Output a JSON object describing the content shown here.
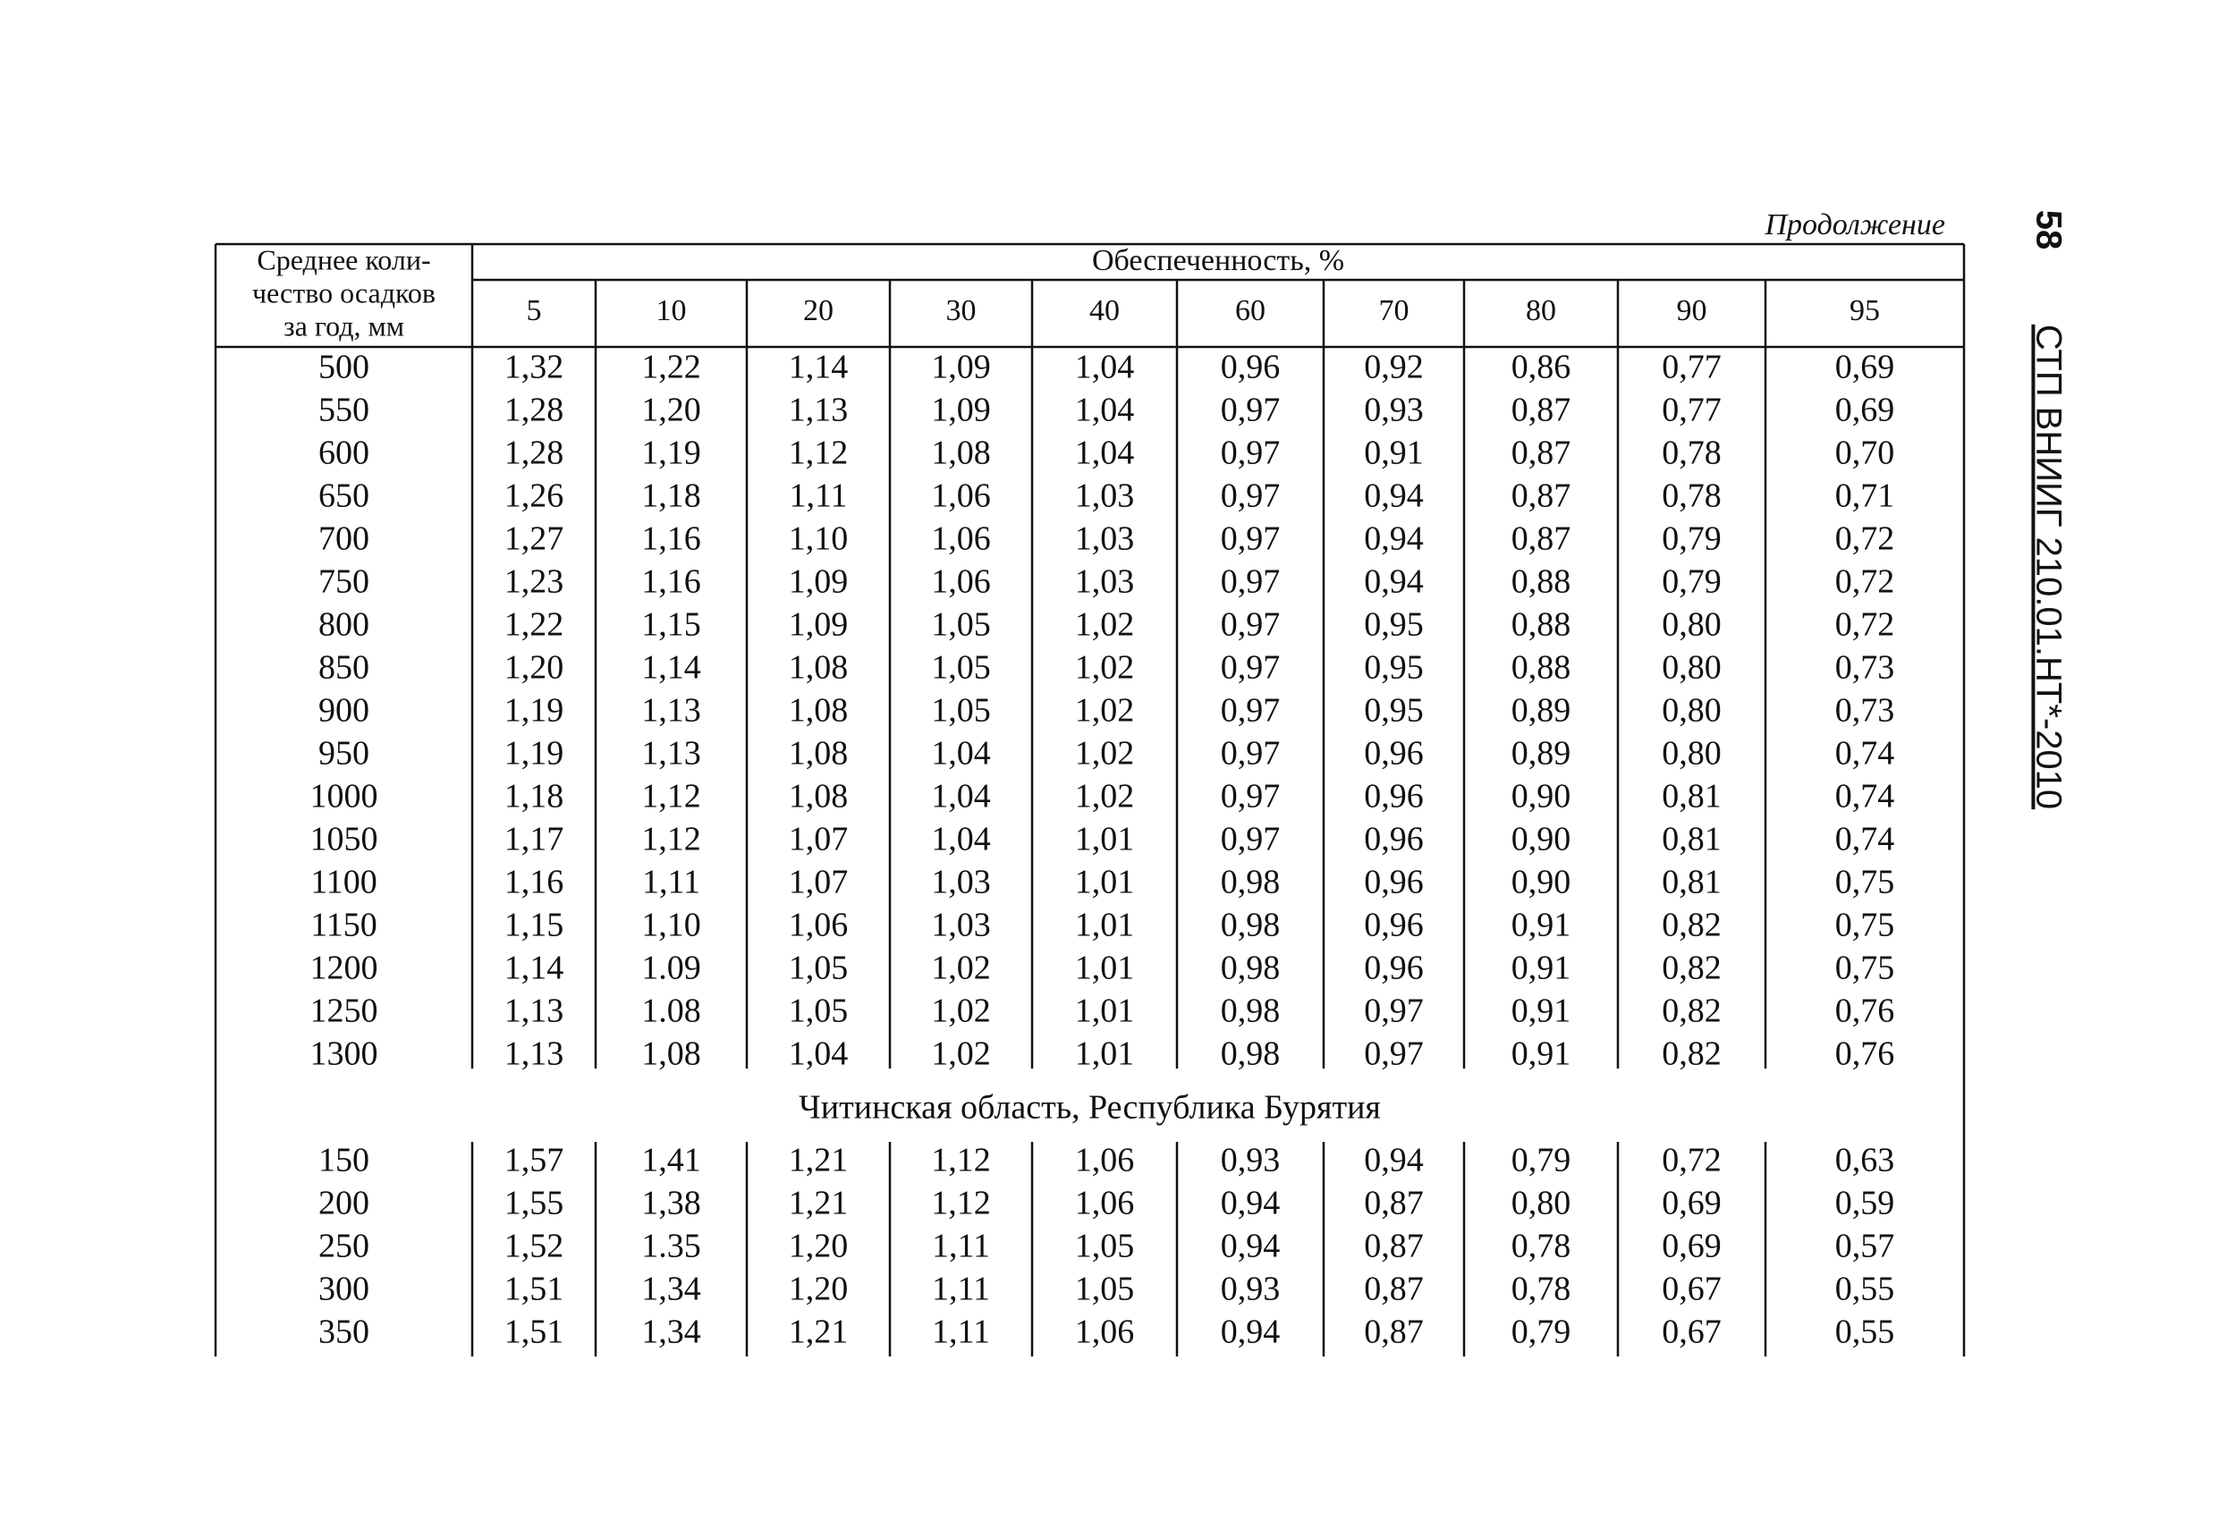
{
  "header": {
    "continuation": "Продолжение",
    "page_number": "58",
    "document_code": "СТП ВНИИГ 210.01.НТ*-2010"
  },
  "table": {
    "row_header": [
      "Среднее коли-",
      "чество осадков",
      "за год, мм"
    ],
    "group_header": "Обеспеченность, %",
    "columns": [
      "5",
      "10",
      "20",
      "30",
      "40",
      "60",
      "70",
      "80",
      "90",
      "95"
    ],
    "sections": [
      {
        "rows": [
          [
            "500",
            "1,32",
            "1,22",
            "1,14",
            "1,09",
            "1,04",
            "0,96",
            "0,92",
            "0,86",
            "0,77",
            "0,69"
          ],
          [
            "550",
            "1,28",
            "1,20",
            "1,13",
            "1,09",
            "1,04",
            "0,97",
            "0,93",
            "0,87",
            "0,77",
            "0,69"
          ],
          [
            "600",
            "1,28",
            "1,19",
            "1,12",
            "1,08",
            "1,04",
            "0,97",
            "0,91",
            "0,87",
            "0,78",
            "0,70"
          ],
          [
            "650",
            "1,26",
            "1,18",
            "1,11",
            "1,06",
            "1,03",
            "0,97",
            "0,94",
            "0,87",
            "0,78",
            "0,71"
          ],
          [
            "700",
            "1,27",
            "1,16",
            "1,10",
            "1,06",
            "1,03",
            "0,97",
            "0,94",
            "0,87",
            "0,79",
            "0,72"
          ],
          [
            "750",
            "1,23",
            "1,16",
            "1,09",
            "1,06",
            "1,03",
            "0,97",
            "0,94",
            "0,88",
            "0,79",
            "0,72"
          ],
          [
            "800",
            "1,22",
            "1,15",
            "1,09",
            "1,05",
            "1,02",
            "0,97",
            "0,95",
            "0,88",
            "0,80",
            "0,72"
          ],
          [
            "850",
            "1,20",
            "1,14",
            "1,08",
            "1,05",
            "1,02",
            "0,97",
            "0,95",
            "0,88",
            "0,80",
            "0,73"
          ],
          [
            "900",
            "1,19",
            "1,13",
            "1,08",
            "1,05",
            "1,02",
            "0,97",
            "0,95",
            "0,89",
            "0,80",
            "0,73"
          ],
          [
            "950",
            "1,19",
            "1,13",
            "1,08",
            "1,04",
            "1,02",
            "0,97",
            "0,96",
            "0,89",
            "0,80",
            "0,74"
          ],
          [
            "1000",
            "1,18",
            "1,12",
            "1,08",
            "1,04",
            "1,02",
            "0,97",
            "0,96",
            "0,90",
            "0,81",
            "0,74"
          ],
          [
            "1050",
            "1,17",
            "1,12",
            "1,07",
            "1,04",
            "1,01",
            "0,97",
            "0,96",
            "0,90",
            "0,81",
            "0,74"
          ],
          [
            "1100",
            "1,16",
            "1,11",
            "1,07",
            "1,03",
            "1,01",
            "0,98",
            "0,96",
            "0,90",
            "0,81",
            "0,75"
          ],
          [
            "1150",
            "1,15",
            "1,10",
            "1,06",
            "1,03",
            "1,01",
            "0,98",
            "0,96",
            "0,91",
            "0,82",
            "0,75"
          ],
          [
            "1200",
            "1,14",
            "1.09",
            "1,05",
            "1,02",
            "1,01",
            "0,98",
            "0,96",
            "0,91",
            "0,82",
            "0,75"
          ],
          [
            "1250",
            "1,13",
            "1.08",
            "1,05",
            "1,02",
            "1,01",
            "0,98",
            "0,97",
            "0,91",
            "0,82",
            "0,76"
          ],
          [
            "1300",
            "1,13",
            "1,08",
            "1,04",
            "1,02",
            "1,01",
            "0,98",
            "0,97",
            "0,91",
            "0,82",
            "0,76"
          ]
        ]
      },
      {
        "title": "Читинская область, Республика Бурятия",
        "rows": [
          [
            "150",
            "1,57",
            "1,41",
            "1,21",
            "1,12",
            "1,06",
            "0,93",
            "0,94",
            "0,79",
            "0,72",
            "0,63"
          ],
          [
            "200",
            "1,55",
            "1,38",
            "1,21",
            "1,12",
            "1,06",
            "0,94",
            "0,87",
            "0,80",
            "0,69",
            "0,59"
          ],
          [
            "250",
            "1,52",
            "1.35",
            "1,20",
            "1,11",
            "1,05",
            "0,94",
            "0,87",
            "0,78",
            "0,69",
            "0,57"
          ],
          [
            "300",
            "1,51",
            "1,34",
            "1,20",
            "1,11",
            "1,05",
            "0,93",
            "0,87",
            "0,78",
            "0,67",
            "0,55"
          ],
          [
            "350",
            "1,51",
            "1,34",
            "1,21",
            "1,11",
            "1,06",
            "0,94",
            "0,87",
            "0,79",
            "0,67",
            "0,55"
          ]
        ]
      }
    ]
  }
}
